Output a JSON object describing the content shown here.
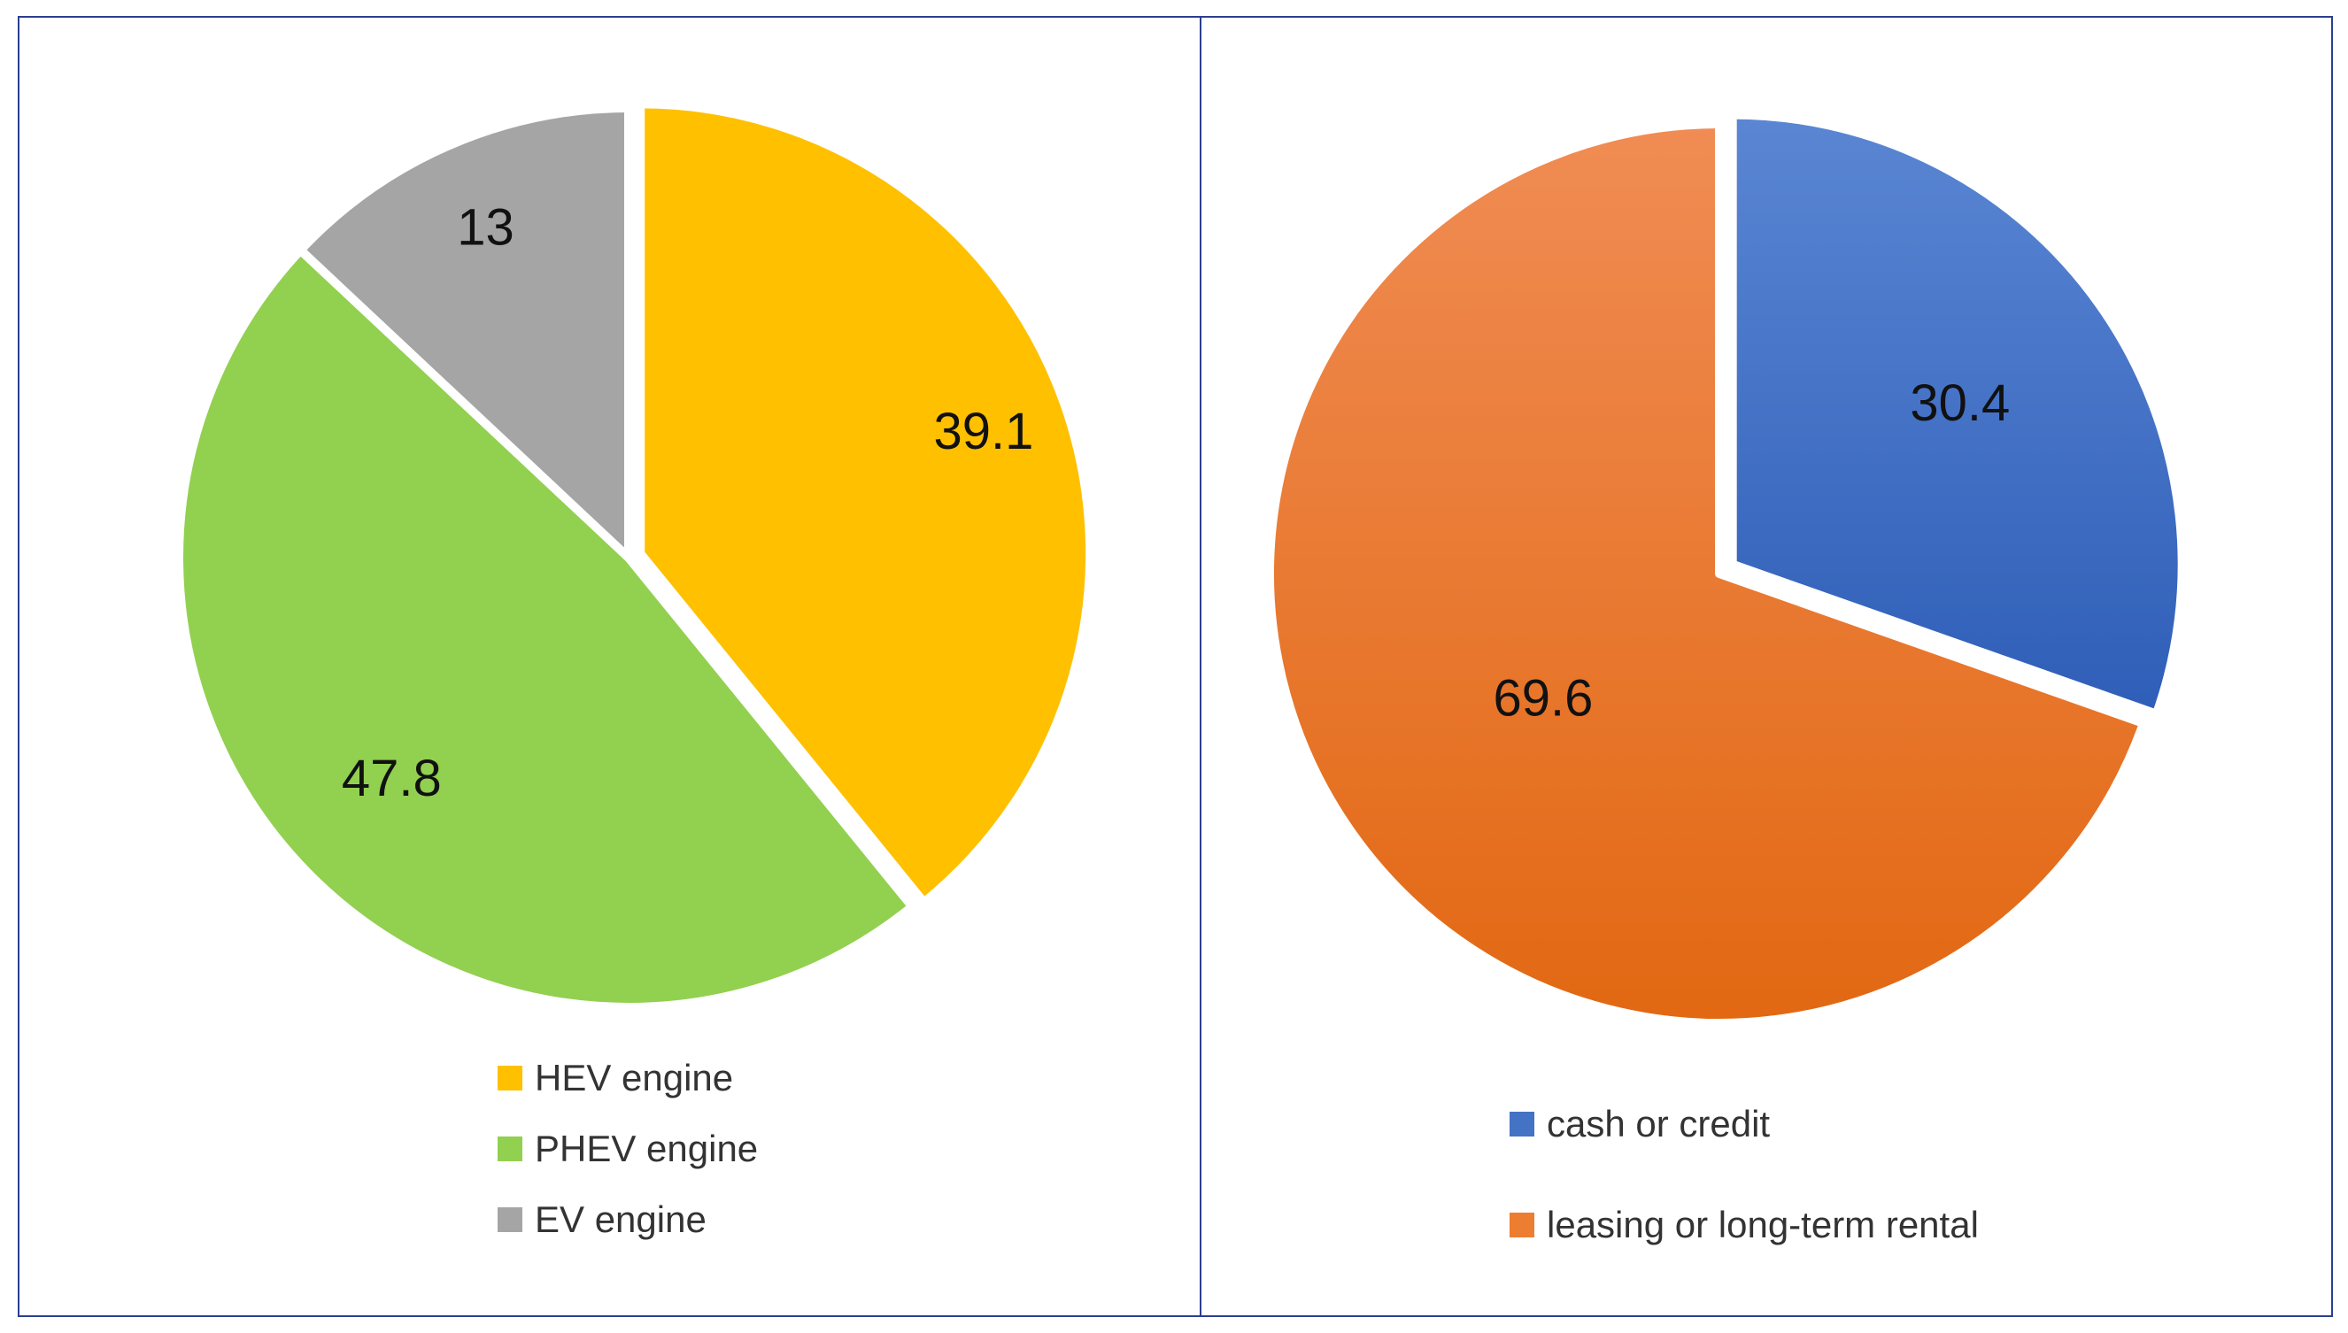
{
  "chart_data": [
    {
      "type": "pie",
      "categories": [
        "HEV engine",
        "PHEV engine",
        "EV engine"
      ],
      "values": [
        39.1,
        47.8,
        13
      ],
      "data_labels": [
        "39.1",
        "47.8",
        "13"
      ],
      "colors": [
        "#FFC000",
        "#92D050",
        "#A5A5A5"
      ],
      "start": "12 o'clock",
      "direction": "clockwise",
      "legend": "bottom"
    },
    {
      "type": "pie",
      "categories": [
        "cash or credit",
        "leasing or long-term rental"
      ],
      "values": [
        30.4,
        69.6
      ],
      "data_labels": [
        "30.4",
        "69.6"
      ],
      "colors": [
        "#4472C4",
        "#ED7D31"
      ],
      "start": "12 o'clock",
      "direction": "clockwise",
      "legend": "bottom"
    }
  ]
}
